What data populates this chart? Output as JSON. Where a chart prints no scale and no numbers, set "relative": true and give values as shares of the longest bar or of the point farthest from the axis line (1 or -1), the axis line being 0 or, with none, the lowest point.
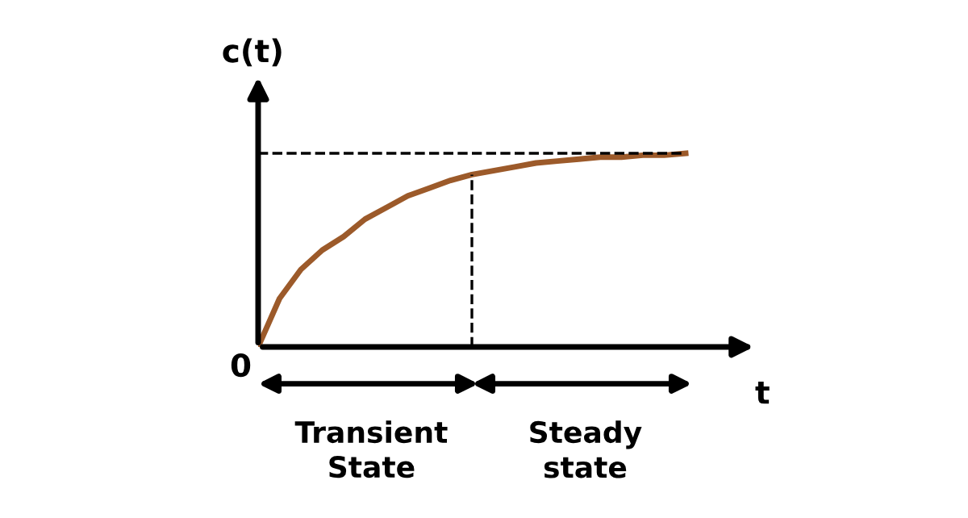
{
  "chart_data": {
    "type": "line",
    "relative": true,
    "ylabel": "c(t)",
    "xlabel": "t",
    "categories": [
      null,
      null,
      null,
      null,
      null,
      null,
      null,
      null,
      null,
      null,
      null,
      null,
      null,
      null,
      null,
      null,
      null,
      null,
      null,
      null,
      null
    ],
    "series": [
      {
        "color": "#9c5a2a",
        "values": [
          0,
          0.25,
          0.4,
          0.5,
          0.57,
          0.66,
          0.72,
          0.78,
          0.82,
          0.86,
          0.89,
          0.91,
          0.93,
          0.95,
          0.96,
          0.97,
          0.98,
          0.98,
          0.99,
          0.99,
          1
        ]
      }
    ],
    "annotations": [
      "0",
      "Transient\nState",
      "Steady\nstate"
    ],
    "legend": false,
    "marker": "none",
    "line_style": "solid"
  }
}
